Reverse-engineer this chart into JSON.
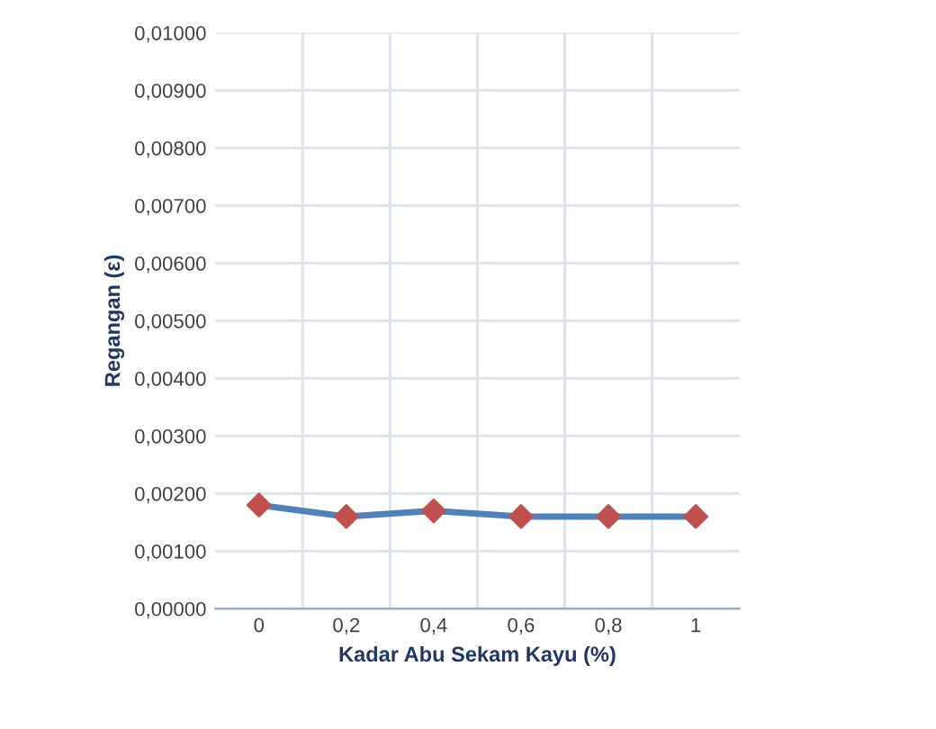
{
  "chart_data": {
    "type": "line",
    "xlabel": "Kadar Abu Sekam Kayu (%)",
    "ylabel": "Regangan (ε)",
    "categories": [
      "0",
      "0,2",
      "0,4",
      "0,6",
      "0,8",
      "1"
    ],
    "series": [
      {
        "color": "#4f81bd",
        "colors": [
          "#c0504d",
          "#c0504d",
          "#c0504d",
          "#c0504d",
          "#c0504d",
          "#c0504d"
        ],
        "values": [
          0.0018,
          0.0016,
          0.0017,
          0.0016,
          0.0016,
          0.0016
        ]
      }
    ],
    "ylim": [
      0,
      0.01
    ],
    "yticks": [
      {
        "value": 0,
        "label": "0,00000"
      },
      {
        "value": 0.001,
        "label": "0,00100"
      },
      {
        "value": 0.002,
        "label": "0,00200"
      },
      {
        "value": 0.003,
        "label": "0,00300"
      },
      {
        "value": 0.004,
        "label": "0,00400"
      },
      {
        "value": 0.005,
        "label": "0,00500"
      },
      {
        "value": 0.006,
        "label": "0,00600"
      },
      {
        "value": 0.007,
        "label": "0,00700"
      },
      {
        "value": 0.008,
        "label": "0,00800"
      },
      {
        "value": 0.009,
        "label": "0,00900"
      },
      {
        "value": 0.01,
        "label": "0,01000"
      }
    ],
    "grid": true,
    "marker": "diamond",
    "line_style": "solid"
  }
}
